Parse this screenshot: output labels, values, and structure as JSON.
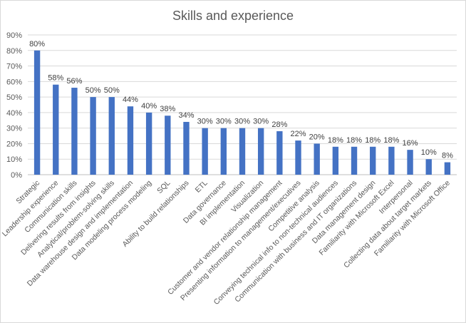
{
  "chart_data": {
    "type": "bar",
    "title": "Skills and experience",
    "xlabel": "",
    "ylabel": "",
    "ylim": [
      0,
      90
    ],
    "yticks": [
      "0%",
      "10%",
      "20%",
      "30%",
      "40%",
      "50%",
      "60%",
      "70%",
      "80%",
      "90%"
    ],
    "grid": true,
    "legend": "none",
    "bar_color": "#4472C4",
    "categories": [
      "Strategic",
      "Leadership experience",
      "Communication skills",
      "Delivering results from insights",
      "Analytical/problem-solving skills",
      "Data warehouse design and implementation",
      "Data modeling process modeling",
      "SQL",
      "Ability to build relationships",
      "ETL",
      "Data governance",
      "BI implementation",
      "Visualization",
      "Customer and vendor relationship management",
      "Presenting information to management/executives",
      "Competitive analysis",
      "Conveying technical info to non-technical audiences",
      "Communication with business and IT organizations",
      "Data management design",
      "Familiarity with Microsoft Excel",
      "Interpersonal",
      "Collecting data about target markets",
      "Familiarity with Microsoft Office"
    ],
    "values": [
      80,
      58,
      56,
      50,
      50,
      44,
      40,
      38,
      34,
      30,
      30,
      30,
      30,
      28,
      22,
      20,
      18,
      18,
      18,
      18,
      16,
      10,
      8
    ],
    "data_labels": [
      "80%",
      "58%",
      "56%",
      "50%",
      "50%",
      "44%",
      "40%",
      "38%",
      "34%",
      "30%",
      "30%",
      "30%",
      "30%",
      "28%",
      "22%",
      "20%",
      "18%",
      "18%",
      "18%",
      "18%",
      "16%",
      "10%",
      "8%"
    ]
  }
}
